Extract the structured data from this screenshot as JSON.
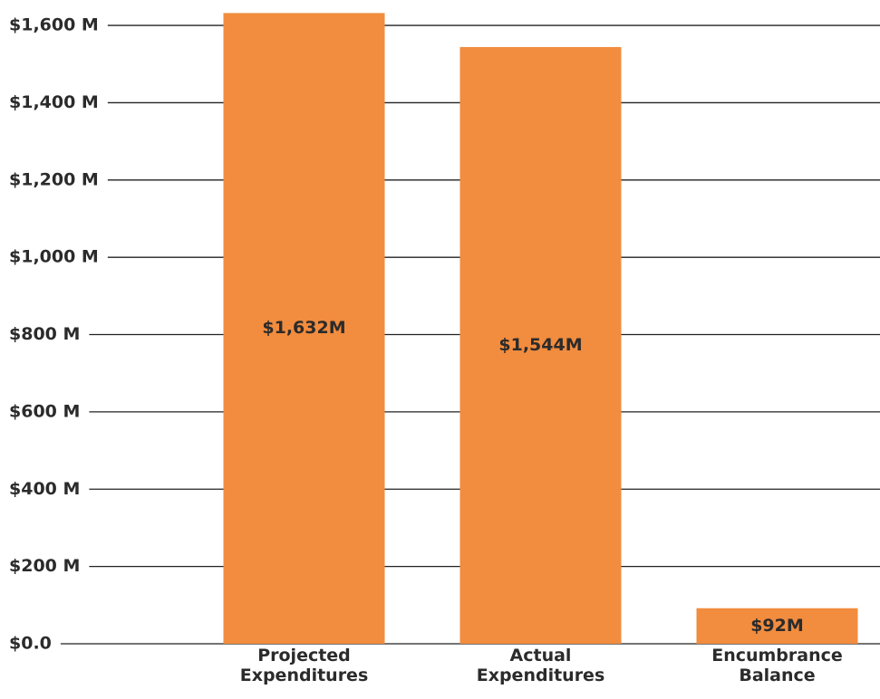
{
  "chart_data": {
    "type": "bar",
    "categories": [
      "Projected Expenditures",
      "Actual Expenditures",
      "Encumbrance Balance"
    ],
    "values": [
      1632,
      1544,
      92
    ],
    "value_labels": [
      "$1,632M",
      "$1,544M",
      "$92M"
    ],
    "color": "#f28c3e",
    "ylim": [
      0,
      1640
    ],
    "yticks": [
      {
        "value": 0,
        "label": "$0.0"
      },
      {
        "value": 200,
        "label": "$200 M"
      },
      {
        "value": 400,
        "label": "$400 M"
      },
      {
        "value": 600,
        "label": "$600 M"
      },
      {
        "value": 800,
        "label": "$800 M"
      },
      {
        "value": 1000,
        "label": "$1,000 M"
      },
      {
        "value": 1200,
        "label": "$1,200 M"
      },
      {
        "value": 1400,
        "label": "$1,400 M"
      },
      {
        "value": 1600,
        "label": "$1,600 M"
      }
    ],
    "grid": true
  }
}
